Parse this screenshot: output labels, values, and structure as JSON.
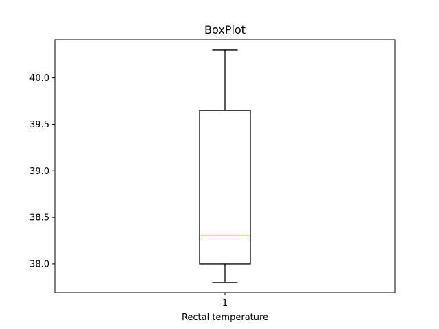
{
  "chart_data": {
    "type": "box",
    "title": "BoxPlot",
    "xlabel": "Rectal temperature",
    "ylabel": "",
    "categories": [
      "1"
    ],
    "ylim": [
      37.69,
      40.41
    ],
    "yticks": [
      "38.0",
      "38.5",
      "39.0",
      "39.5",
      "40.0"
    ],
    "boxes": [
      {
        "whisker_low": 37.8,
        "q1": 38.0,
        "median": 38.3,
        "q3": 39.65,
        "whisker_high": 40.3
      }
    ],
    "grid": false,
    "colors": {
      "box": "#000000",
      "median": "#ff7f0e",
      "axes": "#000000"
    }
  }
}
